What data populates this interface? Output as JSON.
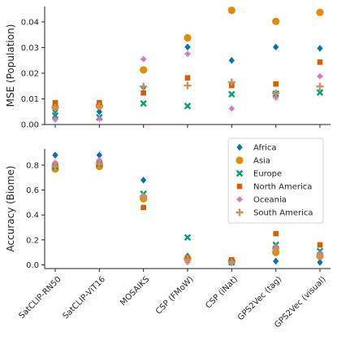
{
  "chart_data": [
    {
      "type": "scatter",
      "title": "",
      "xlabel": "",
      "ylabel": "MSE (Population)",
      "ylim": [
        0,
        0.046
      ],
      "yticks": [
        0.0,
        0.01,
        0.02,
        0.03,
        0.04
      ],
      "ytick_labels": [
        "0.00",
        "0.01",
        "0.02",
        "0.03",
        "0.04"
      ],
      "categories": [
        "SatCLIP-RN50",
        "SatCLIP-ViT16",
        "MOSAIKS",
        "CSP (FMoW)",
        "CSP (iNat)",
        "GPS2Vec (tag)",
        "GPS2Vec (visual)"
      ],
      "show_xtick_labels": false,
      "grid": false,
      "series": [
        {
          "name": "Africa",
          "values": [
            0.0055,
            0.005,
            0.0145,
            0.0302,
            0.025,
            0.0302,
            0.0297
          ]
        },
        {
          "name": "Asia",
          "values": [
            0.0068,
            0.0072,
            0.0213,
            0.0338,
            0.0445,
            0.0402,
            0.0437
          ]
        },
        {
          "name": "Europe",
          "values": [
            0.0035,
            0.0028,
            0.0082,
            0.0072,
            0.0118,
            0.012,
            0.0125
          ]
        },
        {
          "name": "North America",
          "values": [
            0.0085,
            0.0085,
            0.0123,
            0.0182,
            0.0152,
            0.0158,
            0.0243
          ]
        },
        {
          "name": "Oceania",
          "values": [
            0.002,
            0.0022,
            0.0255,
            0.0275,
            0.0062,
            0.0105,
            0.0188
          ]
        },
        {
          "name": "South America",
          "values": [
            0.0065,
            0.0072,
            0.0148,
            0.0152,
            0.0165,
            0.0122,
            0.0148
          ]
        }
      ]
    },
    {
      "type": "scatter",
      "title": "",
      "xlabel": "",
      "ylabel": "Accuracy (Biome)",
      "ylim": [
        -0.03,
        0.93
      ],
      "yticks": [
        0.0,
        0.2,
        0.4,
        0.6,
        0.8
      ],
      "ytick_labels": [
        "0.0",
        "0.2",
        "0.4",
        "0.6",
        "0.8"
      ],
      "categories": [
        "SatCLIP-RN50",
        "SatCLIP-ViT16",
        "MOSAIKS",
        "CSP (FMoW)",
        "CSP (iNat)",
        "GPS2Vec (tag)",
        "GPS2Vec (visual)"
      ],
      "show_xtick_labels": true,
      "grid": false,
      "legend_position": "top-right",
      "series": [
        {
          "name": "Africa",
          "values": [
            0.88,
            0.88,
            0.68,
            0.07,
            0.02,
            0.03,
            0.02
          ]
        },
        {
          "name": "Asia",
          "values": [
            0.77,
            0.79,
            0.53,
            0.05,
            0.03,
            0.1,
            0.07
          ]
        },
        {
          "name": "Europe",
          "values": [
            0.79,
            0.81,
            0.57,
            0.22,
            0.02,
            0.16,
            0.11
          ]
        },
        {
          "name": "North America",
          "values": [
            0.8,
            0.81,
            0.46,
            0.05,
            0.04,
            0.25,
            0.16
          ]
        },
        {
          "name": "Oceania",
          "values": [
            0.82,
            0.84,
            0.55,
            0.02,
            0.02,
            0.15,
            0.09
          ]
        },
        {
          "name": "South America",
          "values": [
            0.79,
            0.81,
            0.55,
            0.04,
            0.02,
            0.13,
            0.07
          ]
        }
      ]
    }
  ],
  "legend": {
    "position": "top-right",
    "items": [
      {
        "label": "Africa",
        "marker": "diamond",
        "color": "#0173b2"
      },
      {
        "label": "Asia",
        "marker": "circle",
        "color": "#de8f05"
      },
      {
        "label": "Europe",
        "marker": "x",
        "color": "#029e73"
      },
      {
        "label": "North America",
        "marker": "square",
        "color": "#d55e00"
      },
      {
        "label": "Oceania",
        "marker": "plus-thin",
        "color": "#cc78bc"
      },
      {
        "label": "South America",
        "marker": "plus",
        "color": "#ca9161"
      }
    ]
  }
}
